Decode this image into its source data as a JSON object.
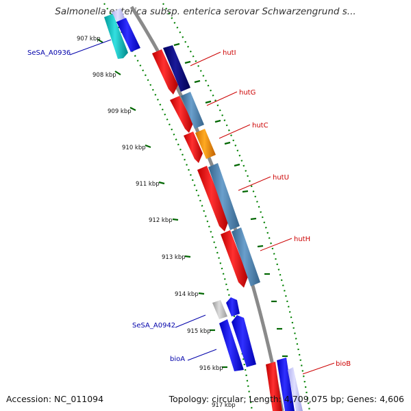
{
  "title": "Salmonella enterica subsp. enterica serovar Schwarzengrund s...",
  "footer": {
    "accession": "Accession: NC_011094",
    "summary": "Topology: circular; Length: 4,709,075 bp; Genes: 4,606"
  },
  "colors": {
    "red_gene": "#ff0000",
    "steel_gene": "#4682b4",
    "navy_gene": "#00007f",
    "blue_gene": "#0000ff",
    "cyan_gene": "#00cccc",
    "orange_gene": "#ff9900",
    "gray_gene": "#bbbbbb",
    "backbone": "#888888",
    "ticks": "#006600",
    "label_red": "#cc0000",
    "label_blue": "#0000aa"
  },
  "tick_labels": [
    "907 kbp",
    "908 kbp",
    "909 kbp",
    "910 kbp",
    "911 kbp",
    "912 kbp",
    "913 kbp",
    "914 kbp",
    "915 kbp",
    "916 kbp",
    "917 kbp"
  ],
  "genes": [
    {
      "name": "hutI",
      "label": "hutI",
      "side": "right"
    },
    {
      "name": "hutG",
      "label": "hutG",
      "side": "right"
    },
    {
      "name": "hutC",
      "label": "hutC",
      "side": "right"
    },
    {
      "name": "hutU",
      "label": "hutU",
      "side": "right"
    },
    {
      "name": "hutH",
      "label": "hutH",
      "side": "right"
    },
    {
      "name": "bioB",
      "label": "bioB",
      "side": "right"
    },
    {
      "name": "SeSA_A0936",
      "label": "SeSA_A0936",
      "side": "left"
    },
    {
      "name": "SeSA_A0942",
      "label": "SeSA_A0942",
      "side": "left"
    },
    {
      "name": "bioA",
      "label": "bioA",
      "side": "left"
    }
  ]
}
